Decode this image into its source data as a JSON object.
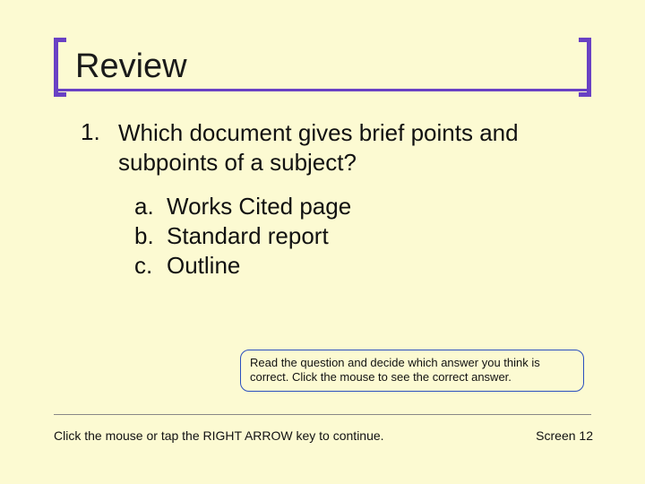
{
  "colors": {
    "background": "#fcfad2",
    "accent": "#6941c4",
    "box_border": "#2a4fbf",
    "divider": "#888888",
    "text": "#111111"
  },
  "title": "Review",
  "question": {
    "number": "1.",
    "text": "Which document gives brief points and subpoints of a subject?",
    "choices": [
      {
        "letter": "a.",
        "text": "Works Cited page"
      },
      {
        "letter": "b.",
        "text": "Standard report"
      },
      {
        "letter": "c.",
        "text": "Outline"
      }
    ]
  },
  "instruction": "Read the question and decide which answer you think is correct. Click the mouse to see the correct answer.",
  "footer": {
    "prompt": "Click the mouse or tap the RIGHT ARROW key to continue.",
    "screen": "Screen 12"
  }
}
